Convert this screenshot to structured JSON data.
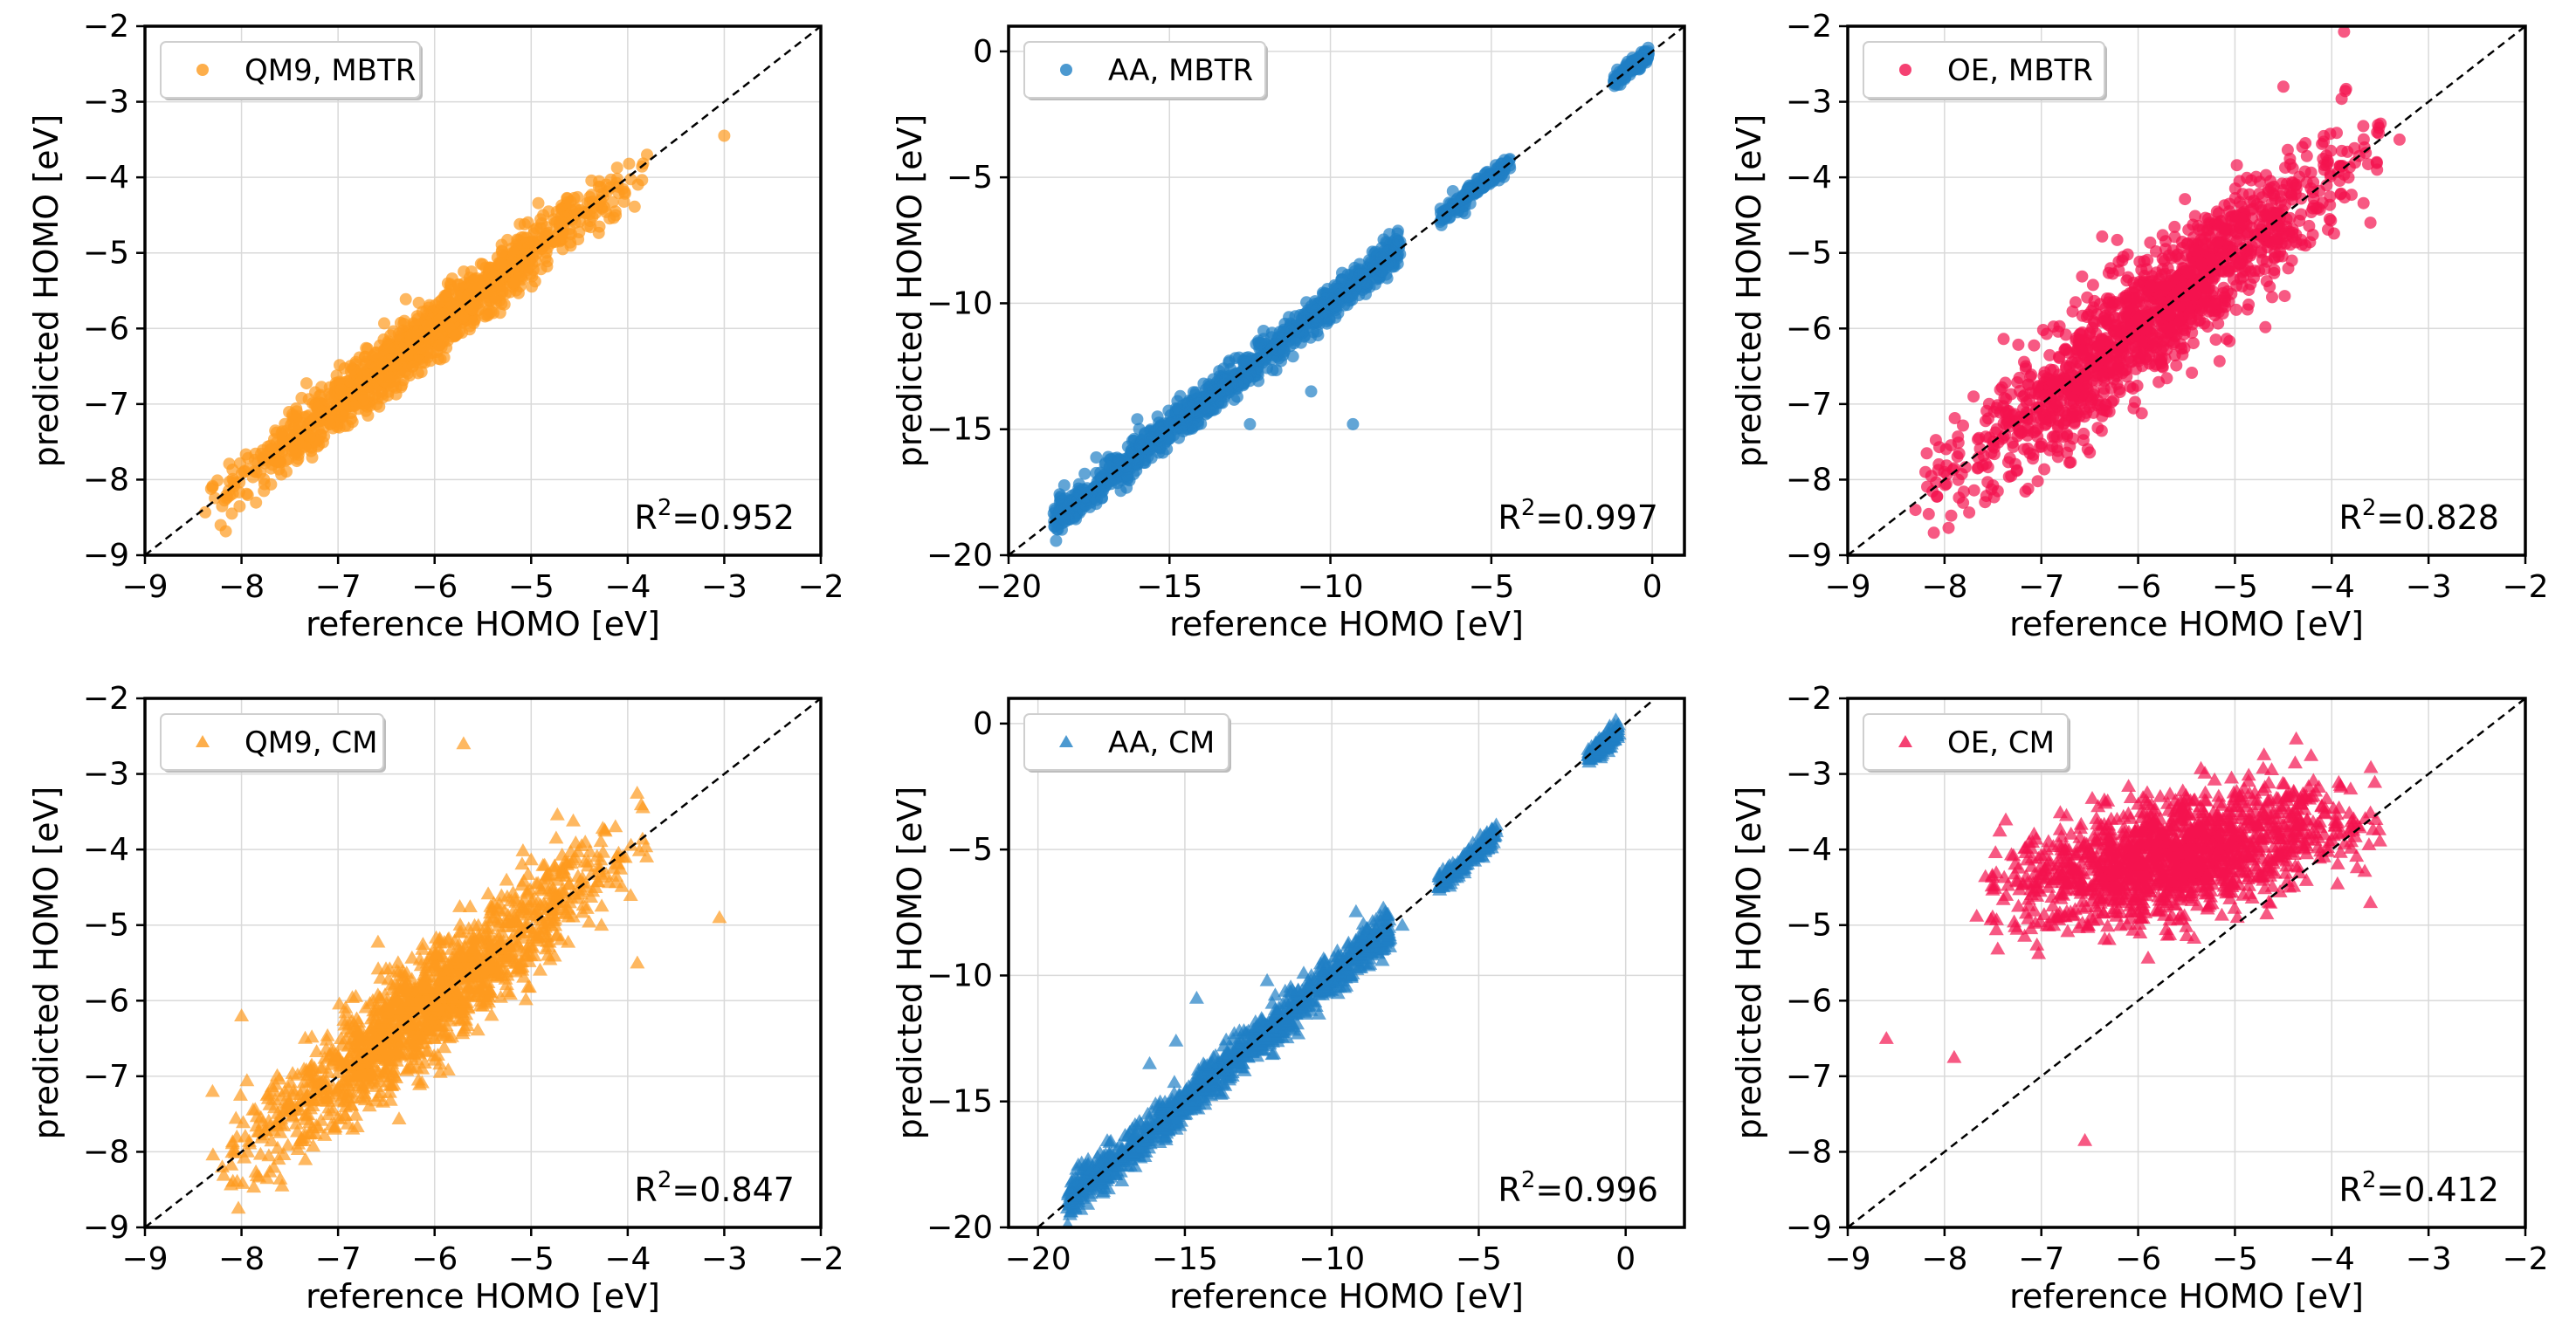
{
  "colors": {
    "qm9": "#fd9a1e",
    "aa": "#1f7fc4",
    "oe": "#f3124f",
    "diagonal": "#000000",
    "grid": "#d9d9d9"
  },
  "chart_data": [
    {
      "type": "scatter",
      "marker": "circle",
      "color_key": "qm9",
      "legend": "QM9, MBTR",
      "xlabel": "reference HOMO [eV]",
      "ylabel": "predicted HOMO [eV]",
      "xlim": [
        -9,
        -2
      ],
      "ylim": [
        -9,
        -2
      ],
      "xticks": [
        -9,
        -8,
        -7,
        -6,
        -5,
        -4,
        -3,
        -2
      ],
      "yticks": [
        -9,
        -8,
        -7,
        -6,
        -5,
        -4,
        -3,
        -2
      ],
      "tick_labels_x": [
        "−9",
        "−8",
        "−7",
        "−6",
        "−5",
        "−4",
        "−3",
        "−2"
      ],
      "tick_labels_y": [
        "−9",
        "−8",
        "−7",
        "−6",
        "−5",
        "−4",
        "−3",
        "−2"
      ],
      "annotation": {
        "prefix": "R",
        "sup": "2",
        "value": "=0.952"
      },
      "cloud": {
        "x_range": [
          -8.4,
          -3.8
        ],
        "noise": 0.18
      },
      "outliers": [
        [
          -3.0,
          -3.45
        ],
        [
          -8.1,
          -8.45
        ],
        [
          -3.8,
          -3.7
        ],
        [
          -8.3,
          -8.1
        ],
        [
          -7.7,
          -7.55
        ]
      ]
    },
    {
      "type": "scatter",
      "marker": "circle",
      "color_key": "aa",
      "legend": "AA, MBTR",
      "xlabel": "reference HOMO [eV]",
      "ylabel": "predicted HOMO [eV]",
      "xlim": [
        -20,
        1
      ],
      "ylim": [
        -20,
        1
      ],
      "xticks": [
        -20,
        -15,
        -10,
        -5,
        0
      ],
      "yticks": [
        -20,
        -15,
        -10,
        -5,
        0
      ],
      "tick_labels_x": [
        "−20",
        "−15",
        "−10",
        "−5",
        "0"
      ],
      "tick_labels_y": [
        "−20",
        "−15",
        "−10",
        "−5",
        "0"
      ],
      "annotation": {
        "prefix": "R",
        "sup": "2",
        "value": "=0.997"
      },
      "clusters": [
        {
          "x_range": [
            -18.6,
            -7.8
          ],
          "noise": 0.35,
          "weight": 0.78
        },
        {
          "x_range": [
            -6.6,
            -4.4
          ],
          "noise": 0.18,
          "weight": 0.12
        },
        {
          "x_range": [
            -1.2,
            -0.1
          ],
          "noise": 0.15,
          "weight": 0.1
        }
      ],
      "outliers": [
        [
          -9.3,
          -14.8
        ],
        [
          -10.6,
          -13.5
        ],
        [
          -16.0,
          -14.6
        ],
        [
          -12.5,
          -14.8
        ]
      ]
    },
    {
      "type": "scatter",
      "marker": "circle",
      "color_key": "oe",
      "legend": "OE, MBTR",
      "xlabel": "reference HOMO [eV]",
      "ylabel": "predicted HOMO [eV]",
      "xlim": [
        -9,
        -2
      ],
      "ylim": [
        -9,
        -2
      ],
      "xticks": [
        -9,
        -8,
        -7,
        -6,
        -5,
        -4,
        -3,
        -2
      ],
      "yticks": [
        -9,
        -8,
        -7,
        -6,
        -5,
        -4,
        -3,
        -2
      ],
      "tick_labels_x": [
        "−9",
        "−8",
        "−7",
        "−6",
        "−5",
        "−4",
        "−3",
        "−2"
      ],
      "tick_labels_y": [
        "−9",
        "−8",
        "−7",
        "−6",
        "−5",
        "−4",
        "−3",
        "−2"
      ],
      "annotation": {
        "prefix": "R",
        "sup": "2",
        "value": "=0.828"
      },
      "cloud": {
        "x_range": [
          -8.2,
          -3.4
        ],
        "noise": 0.42
      },
      "outliers": [
        [
          -4.5,
          -2.8
        ],
        [
          -3.3,
          -3.5
        ],
        [
          -8.3,
          -8.4
        ],
        [
          -7.7,
          -6.9
        ],
        [
          -3.6,
          -4.6
        ],
        [
          -7.9,
          -7.85
        ]
      ]
    },
    {
      "type": "scatter",
      "marker": "triangle",
      "color_key": "qm9",
      "legend": "QM9, CM",
      "xlabel": "reference HOMO [eV]",
      "ylabel": "predicted HOMO [eV]",
      "xlim": [
        -9,
        -2
      ],
      "ylim": [
        -9,
        -2
      ],
      "xticks": [
        -9,
        -8,
        -7,
        -6,
        -5,
        -4,
        -3,
        -2
      ],
      "yticks": [
        -9,
        -8,
        -7,
        -6,
        -5,
        -4,
        -3,
        -2
      ],
      "tick_labels_x": [
        "−9",
        "−8",
        "−7",
        "−6",
        "−5",
        "−4",
        "−3",
        "−2"
      ],
      "tick_labels_y": [
        "−9",
        "−8",
        "−7",
        "−6",
        "−5",
        "−4",
        "−3",
        "−2"
      ],
      "annotation": {
        "prefix": "R",
        "sup": "2",
        "value": "=0.847"
      },
      "cloud": {
        "x_range": [
          -8.3,
          -3.8
        ],
        "noise": 0.36
      },
      "outliers": [
        [
          -3.05,
          -4.9
        ],
        [
          -8.0,
          -6.2
        ],
        [
          -8.3,
          -7.2
        ],
        [
          -8.2,
          -8.2
        ],
        [
          -5.7,
          -2.6
        ],
        [
          -3.9,
          -5.5
        ]
      ]
    },
    {
      "type": "scatter",
      "marker": "triangle",
      "color_key": "aa",
      "legend": "AA, CM",
      "xlabel": "reference HOMO [eV]",
      "ylabel": "predicted HOMO [eV]",
      "xlim": [
        -21,
        2
      ],
      "ylim": [
        -20,
        1
      ],
      "xticks": [
        -20,
        -15,
        -10,
        -5,
        0
      ],
      "yticks": [
        -20,
        -15,
        -10,
        -5,
        0
      ],
      "tick_labels_x": [
        "−20",
        "−15",
        "−10",
        "−5",
        "0"
      ],
      "tick_labels_y": [
        "−20",
        "−15",
        "−10",
        "−5",
        "0"
      ],
      "annotation": {
        "prefix": "R",
        "sup": "2",
        "value": "=0.996"
      },
      "clusters": [
        {
          "x_range": [
            -19.0,
            -8.0
          ],
          "noise": 0.4,
          "weight": 0.78
        },
        {
          "x_range": [
            -6.4,
            -4.4
          ],
          "noise": 0.2,
          "weight": 0.12
        },
        {
          "x_range": [
            -1.3,
            -0.2
          ],
          "noise": 0.2,
          "weight": 0.1
        }
      ],
      "outliers": [
        [
          -14.6,
          -10.9
        ],
        [
          -16.2,
          -13.5
        ],
        [
          -12.2,
          -10.2
        ],
        [
          -15.3,
          -12.6
        ],
        [
          -7.6,
          -8.0
        ]
      ]
    },
    {
      "type": "scatter",
      "marker": "triangle",
      "color_key": "oe",
      "legend": "OE, CM",
      "xlabel": "reference HOMO [eV]",
      "ylabel": "predicted HOMO [eV]",
      "xlim": [
        -9,
        -2
      ],
      "ylim": [
        -9,
        -2
      ],
      "xticks": [
        -9,
        -8,
        -7,
        -6,
        -5,
        -4,
        -3,
        -2
      ],
      "yticks": [
        -9,
        -8,
        -7,
        -6,
        -5,
        -4,
        -3,
        -2
      ],
      "tick_labels_x": [
        "−9",
        "−8",
        "−7",
        "−6",
        "−5",
        "−4",
        "−3",
        "−2"
      ],
      "tick_labels_y": [
        "−9",
        "−8",
        "−7",
        "−6",
        "−5",
        "−4",
        "−3",
        "−2"
      ],
      "annotation": {
        "prefix": "R",
        "sup": "2",
        "value": "=0.412"
      },
      "cloud": {
        "x_range": [
          -7.7,
          -3.5
        ],
        "noise": 0.38,
        "slope": 0.25,
        "intercept": -4.0
      },
      "outliers": [
        [
          -8.6,
          -6.5
        ],
        [
          -6.55,
          -7.85
        ],
        [
          -3.6,
          -4.7
        ],
        [
          -7.9,
          -6.75
        ]
      ]
    }
  ]
}
